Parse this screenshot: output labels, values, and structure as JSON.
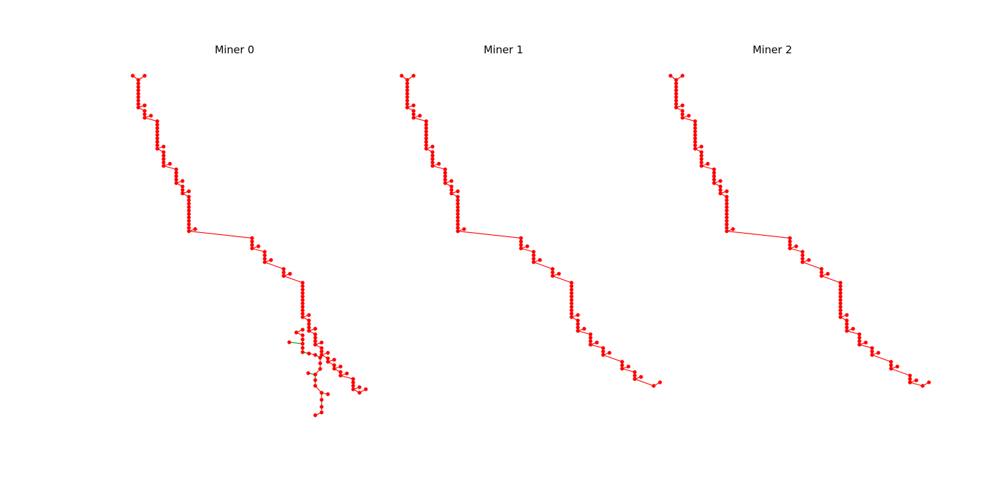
{
  "chart_data": {
    "type": "network",
    "panels": [
      {
        "title": "Miner 0",
        "segments": [
          {
            "dx": 1,
            "dy": 8
          },
          {
            "dx": 2,
            "dy": 2
          },
          {
            "dx": 1,
            "dy": 8
          },
          {
            "dx": 2,
            "dy": 4
          },
          {
            "dx": 1,
            "dy": 4
          },
          {
            "dx": 1,
            "dy": 2
          },
          {
            "dx": 10,
            "dy": 10
          },
          {
            "dx": 2,
            "dy": 3
          },
          {
            "dx": 3,
            "dy": 3
          },
          {
            "dx": 3,
            "dy": 2
          },
          {
            "dx": 1,
            "dy": 10
          },
          {
            "dx": 1,
            "dy": 3
          },
          {
            "dx": 1,
            "dy": 3
          },
          {
            "dx": 1,
            "dy": 2
          },
          {
            "dx": 1,
            "dy": 1
          },
          {
            "dx": 1,
            "dy": 1
          },
          {
            "dx": 2,
            "dy": 1
          },
          {
            "dx": 1,
            "dy": 3
          }
        ],
        "fork_branch": true
      },
      {
        "title": "Miner 1",
        "segments": [
          {
            "dx": 1,
            "dy": 8
          },
          {
            "dx": 2,
            "dy": 2
          },
          {
            "dx": 1,
            "dy": 8
          },
          {
            "dx": 2,
            "dy": 4
          },
          {
            "dx": 1,
            "dy": 4
          },
          {
            "dx": 1,
            "dy": 2
          },
          {
            "dx": 10,
            "dy": 10
          },
          {
            "dx": 2,
            "dy": 3
          },
          {
            "dx": 3,
            "dy": 3
          },
          {
            "dx": 3,
            "dy": 2
          },
          {
            "dx": 1,
            "dy": 10
          },
          {
            "dx": 2,
            "dy": 3
          },
          {
            "dx": 2,
            "dy": 3
          },
          {
            "dx": 3,
            "dy": 2
          },
          {
            "dx": 2,
            "dy": 2
          },
          {
            "dx": 3,
            "dy": 2
          }
        ],
        "fork_branch": false
      },
      {
        "title": "Miner 2",
        "segments": [
          {
            "dx": 1,
            "dy": 8
          },
          {
            "dx": 2,
            "dy": 2
          },
          {
            "dx": 1,
            "dy": 8
          },
          {
            "dx": 2,
            "dy": 4
          },
          {
            "dx": 1,
            "dy": 4
          },
          {
            "dx": 1,
            "dy": 2
          },
          {
            "dx": 10,
            "dy": 10
          },
          {
            "dx": 2,
            "dy": 3
          },
          {
            "dx": 3,
            "dy": 3
          },
          {
            "dx": 3,
            "dy": 2
          },
          {
            "dx": 1,
            "dy": 10
          },
          {
            "dx": 2,
            "dy": 3
          },
          {
            "dx": 2,
            "dy": 3
          },
          {
            "dx": 3,
            "dy": 2
          },
          {
            "dx": 3,
            "dy": 2
          },
          {
            "dx": 2,
            "dy": 2
          }
        ],
        "fork_branch": false
      }
    ],
    "node_color": "#ff0000",
    "main_edge_color": "#ff0000",
    "fork_edge_color": "#008000"
  }
}
